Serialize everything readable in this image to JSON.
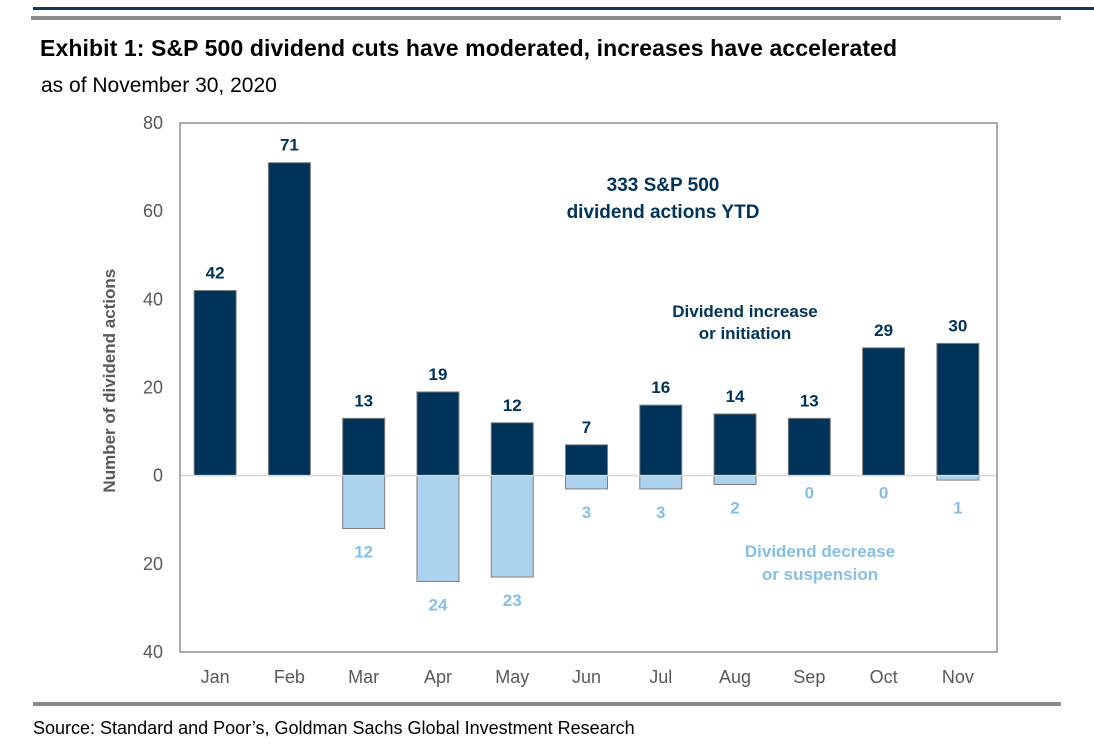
{
  "header": {
    "title": "Exhibit 1: S&P 500 dividend cuts have moderated, increases have accelerated",
    "subtitle": "as of November 30, 2020"
  },
  "footer": {
    "source": "Source: Standard and Poor’s, Goldman Sachs Global Investment Research"
  },
  "colors": {
    "increase": "#003359",
    "decrease": "#abd2ef",
    "decrease_label": "#86bfe6",
    "bar_outline": "#7f7f7f",
    "frame": "#7f7f7f",
    "zero_line": "#d9d9d9",
    "rule_top": "#0b3a5e",
    "rule_grey": "#8a8a8a"
  },
  "chart_data": {
    "type": "bar",
    "title": "Exhibit 1: S&P 500 dividend cuts have moderated, increases have accelerated",
    "subtitle": "as of November 30, 2020",
    "xlabel": "",
    "ylabel": "Number of dividend actions",
    "categories": [
      "Jan",
      "Feb",
      "Mar",
      "Apr",
      "May",
      "Jun",
      "Jul",
      "Aug",
      "Sep",
      "Oct",
      "Nov"
    ],
    "series": [
      {
        "name": "Dividend increase or initiation",
        "direction": "up",
        "values": [
          42,
          71,
          13,
          19,
          12,
          7,
          16,
          14,
          13,
          29,
          30
        ]
      },
      {
        "name": "Dividend decrease or suspension",
        "direction": "down",
        "values": [
          0,
          0,
          12,
          24,
          23,
          3,
          3,
          2,
          0,
          0,
          1
        ]
      }
    ],
    "decrease_labels_shown": [
      false,
      false,
      true,
      true,
      true,
      true,
      true,
      true,
      true,
      true,
      true
    ],
    "ylim": [
      -40,
      80
    ],
    "yticks": [
      80,
      60,
      40,
      20,
      0,
      -20,
      -40
    ],
    "ytick_labels": [
      "80",
      "60",
      "40",
      "20",
      "0",
      "20",
      "40"
    ],
    "grid": false,
    "annotations": {
      "total": [
        "333 S&P 500",
        "dividend actions YTD"
      ],
      "increase_legend": [
        "Dividend increase",
        "or initiation"
      ],
      "decrease_legend": [
        "Dividend decrease",
        "or suspension"
      ]
    }
  }
}
